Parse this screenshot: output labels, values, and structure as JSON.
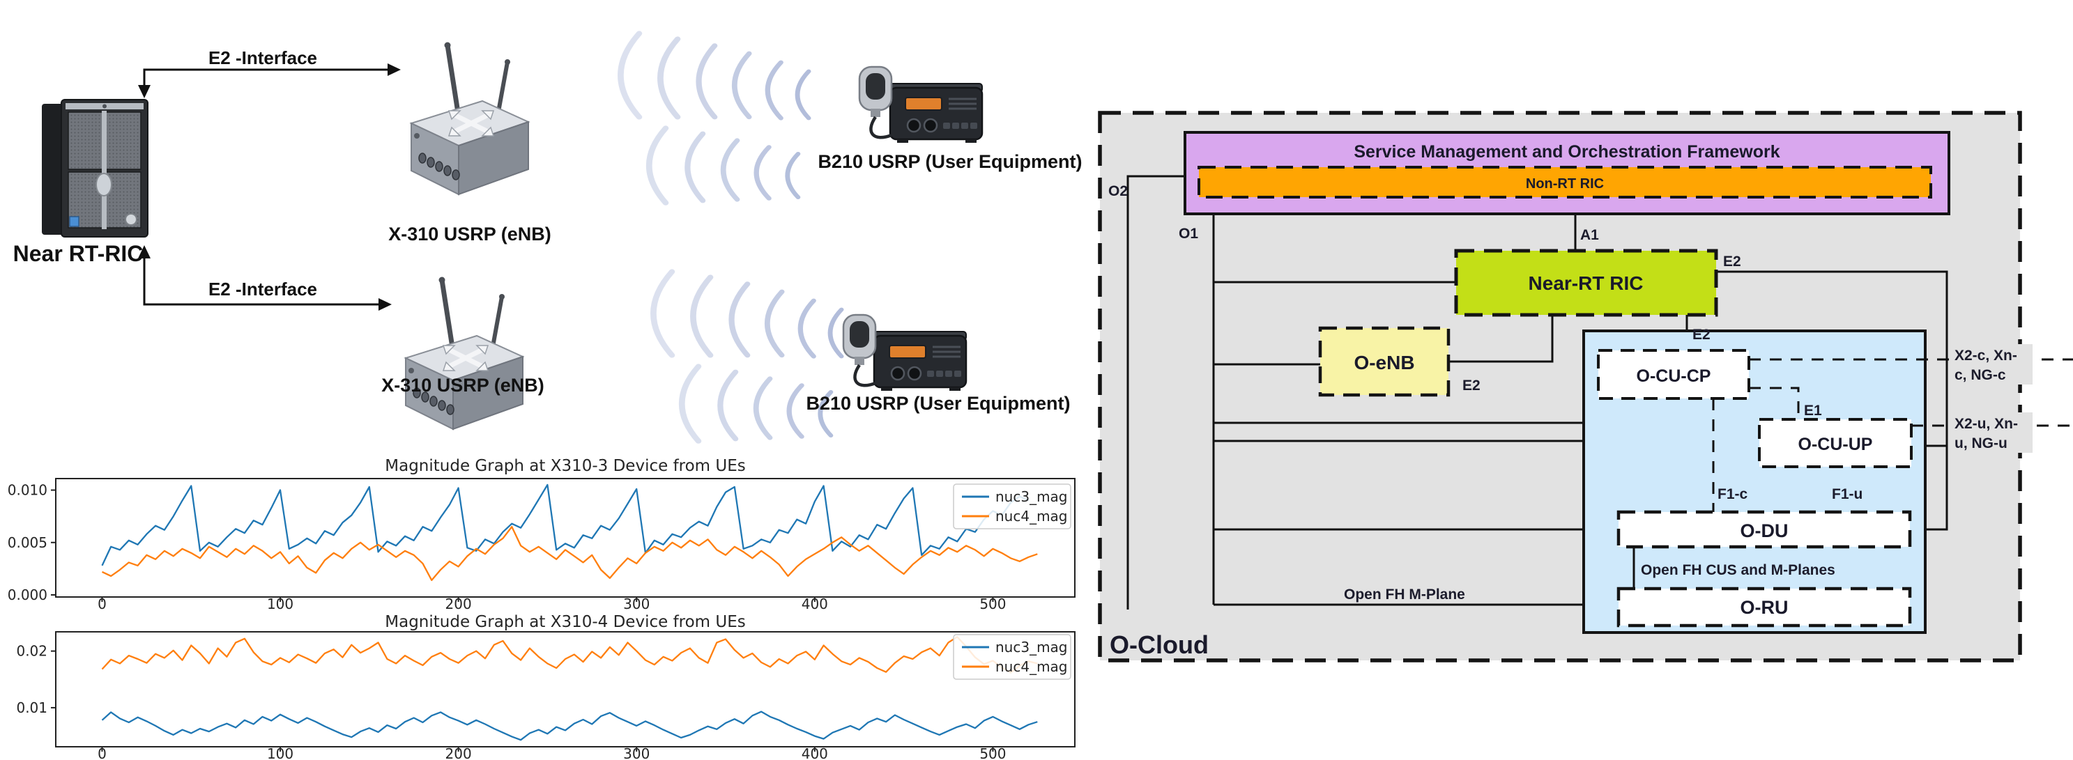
{
  "topology": {
    "near_rt_ric_label": "Near RT-RIC",
    "e2_interface_top_label": "E2 -Interface",
    "e2_interface_bottom_label": "E2 -Interface",
    "enb_top_label": "X-310 USRP (eNB)",
    "enb_bottom_label": "X-310 USRP (eNB)",
    "ue_top_label": "B210 USRP (User Equipment)",
    "ue_bottom_label": "B210 USRP (User Equipment)"
  },
  "oran": {
    "region_label": "O-Cloud",
    "smo_title": "Service Management and Orchestration Framework",
    "non_rt_ric": "Non-RT RIC",
    "near_rt_ric": "Near-RT RIC",
    "o_enb": "O-eNB",
    "o_cu_cp": "O-CU-CP",
    "o_cu_up": "O-CU-UP",
    "o_du": "O-DU",
    "o_ru": "O-RU",
    "interfaces": {
      "o2": "O2",
      "o1": "O1",
      "a1": "A1",
      "e2_top": "E2",
      "e2_mid": "E2",
      "e2_enb": "E2",
      "e1": "E1",
      "f1_c": "F1-c",
      "f1_u": "F1-u",
      "x2_c_line1": "X2-c, Xn-",
      "x2_c_line2": "c, NG-c",
      "x2_u_line1": "X2-u, Xn-",
      "x2_u_line2": "u, NG-u",
      "open_fh_m_plane": "Open FH M-Plane",
      "open_fh_cus": "Open FH CUS and M-Planes"
    },
    "colors": {
      "o_cloud_fill": "#e2e2e2",
      "smo_fill": "#d9a7ee",
      "non_rt_ric_fill": "#ffa502",
      "near_rt_ric_fill": "#c3df17",
      "o_enb_fill": "#f8f3a6",
      "components_region_fill": "#cfe9fb",
      "component_box_fill": "#ffffff",
      "border": "#141414"
    }
  },
  "chart_data": [
    {
      "type": "line",
      "title": "Magnitude Graph at X310-3 Device from UEs",
      "xlabel": "",
      "ylabel": "",
      "x_start": 0,
      "x_step": 5,
      "xticks": [
        0,
        100,
        200,
        300,
        400,
        500
      ],
      "ytick_values": [
        0,
        0.005,
        0.01
      ],
      "ytick_labels": [
        "0.000",
        "0.005",
        "0.010"
      ],
      "xlim": [
        -26,
        546
      ],
      "ylim": [
        -0.0002,
        0.0111
      ],
      "grid": false,
      "legend_position": "upper right",
      "series": [
        {
          "name": "nuc3_mag",
          "color": "#1f77b4",
          "values": [
            0.0028,
            0.0046,
            0.0043,
            0.0052,
            0.0048,
            0.0058,
            0.0066,
            0.0062,
            0.0075,
            0.009,
            0.0104,
            0.0042,
            0.005,
            0.0046,
            0.0055,
            0.0063,
            0.0059,
            0.0071,
            0.0067,
            0.0083,
            0.01,
            0.0044,
            0.0048,
            0.0054,
            0.0049,
            0.0061,
            0.0057,
            0.0069,
            0.0076,
            0.0088,
            0.0103,
            0.0041,
            0.0051,
            0.0047,
            0.0056,
            0.0052,
            0.0065,
            0.0061,
            0.0074,
            0.0086,
            0.0102,
            0.0045,
            0.0042,
            0.0053,
            0.0049,
            0.006,
            0.0068,
            0.0064,
            0.0077,
            0.0091,
            0.0105,
            0.0043,
            0.0049,
            0.0045,
            0.0057,
            0.0054,
            0.0066,
            0.0062,
            0.0073,
            0.0087,
            0.0101,
            0.004,
            0.0052,
            0.0048,
            0.0058,
            0.0055,
            0.0064,
            0.007,
            0.0066,
            0.0084,
            0.0098,
            0.0103,
            0.0044,
            0.0047,
            0.0053,
            0.005,
            0.0062,
            0.0059,
            0.0072,
            0.0068,
            0.0089,
            0.0104,
            0.0042,
            0.0051,
            0.0046,
            0.0057,
            0.0053,
            0.0067,
            0.0063,
            0.0078,
            0.0092,
            0.0102,
            0.0038,
            0.0047,
            0.0044,
            0.0055,
            0.0051,
            0.0063,
            0.006,
            0.0072,
            0.008,
            0.0076,
            0.0088,
            0.0094,
            0.009
          ]
        },
        {
          "name": "nuc4_mag",
          "color": "#ff7f0e",
          "values": [
            0.0022,
            0.0018,
            0.0024,
            0.0031,
            0.0028,
            0.0038,
            0.0034,
            0.0042,
            0.0037,
            0.0044,
            0.004,
            0.0035,
            0.0046,
            0.0041,
            0.0036,
            0.0044,
            0.0039,
            0.0047,
            0.0042,
            0.0035,
            0.0041,
            0.003,
            0.0037,
            0.0026,
            0.0021,
            0.0033,
            0.004,
            0.0035,
            0.0044,
            0.005,
            0.0043,
            0.0048,
            0.0042,
            0.0036,
            0.0042,
            0.0038,
            0.003,
            0.0014,
            0.0024,
            0.0032,
            0.0027,
            0.0037,
            0.0044,
            0.0039,
            0.0048,
            0.0054,
            0.0065,
            0.0047,
            0.0041,
            0.0046,
            0.004,
            0.0034,
            0.0043,
            0.0037,
            0.0031,
            0.0038,
            0.0024,
            0.0016,
            0.0026,
            0.0035,
            0.003,
            0.004,
            0.0046,
            0.0042,
            0.005,
            0.0045,
            0.0052,
            0.0047,
            0.0053,
            0.0043,
            0.0038,
            0.0046,
            0.0041,
            0.0035,
            0.0042,
            0.0036,
            0.0029,
            0.0018,
            0.0027,
            0.0034,
            0.0039,
            0.0044,
            0.005,
            0.0055,
            0.0048,
            0.0042,
            0.0047,
            0.004,
            0.0033,
            0.0026,
            0.002,
            0.0029,
            0.0036,
            0.0042,
            0.0038,
            0.0045,
            0.0041,
            0.0047,
            0.0043,
            0.0037,
            0.0044,
            0.004,
            0.0035,
            0.0032,
            0.0036,
            0.0039
          ]
        }
      ]
    },
    {
      "type": "line",
      "title": "Magnitude Graph at X310-4 Device from UEs",
      "xlabel": "",
      "ylabel": "",
      "x_start": 0,
      "x_step": 5,
      "xticks": [
        0,
        100,
        200,
        300,
        400,
        500
      ],
      "ytick_values": [
        0.01,
        0.02
      ],
      "ytick_labels": [
        "0.01",
        "0.02"
      ],
      "xlim": [
        -26,
        546
      ],
      "ylim": [
        0.0031,
        0.0234
      ],
      "grid": false,
      "legend_position": "upper right",
      "series": [
        {
          "name": "nuc3_mag",
          "color": "#1f77b4",
          "values": [
            0.0078,
            0.0092,
            0.0081,
            0.0074,
            0.0083,
            0.0076,
            0.0068,
            0.0059,
            0.0052,
            0.0061,
            0.0055,
            0.0063,
            0.0058,
            0.0066,
            0.0072,
            0.0065,
            0.0078,
            0.0071,
            0.0084,
            0.0077,
            0.0088,
            0.008,
            0.0073,
            0.0082,
            0.0075,
            0.0067,
            0.006,
            0.0053,
            0.0048,
            0.0058,
            0.0064,
            0.0057,
            0.0069,
            0.0063,
            0.0075,
            0.0082,
            0.0074,
            0.0086,
            0.0092,
            0.0083,
            0.0077,
            0.007,
            0.0078,
            0.0071,
            0.0063,
            0.0056,
            0.0049,
            0.0043,
            0.0055,
            0.0061,
            0.0054,
            0.0066,
            0.006,
            0.0072,
            0.0079,
            0.0071,
            0.0085,
            0.0091,
            0.0082,
            0.0075,
            0.0068,
            0.0076,
            0.0069,
            0.0061,
            0.0054,
            0.0047,
            0.0052,
            0.006,
            0.0067,
            0.0062,
            0.0073,
            0.008,
            0.0072,
            0.0086,
            0.0093,
            0.0084,
            0.0078,
            0.007,
            0.0063,
            0.0057,
            0.005,
            0.0045,
            0.0056,
            0.0062,
            0.0068,
            0.0061,
            0.0074,
            0.0081,
            0.0075,
            0.0087,
            0.0079,
            0.0072,
            0.0065,
            0.0058,
            0.0052,
            0.0059,
            0.0066,
            0.0071,
            0.0064,
            0.0077,
            0.0084,
            0.0076,
            0.0069,
            0.0062,
            0.007,
            0.0075
          ]
        },
        {
          "name": "nuc4_mag",
          "color": "#ff7f0e",
          "values": [
            0.0168,
            0.0185,
            0.0178,
            0.0192,
            0.0186,
            0.0179,
            0.0195,
            0.0188,
            0.0201,
            0.0184,
            0.021,
            0.0196,
            0.0178,
            0.0205,
            0.019,
            0.0215,
            0.0222,
            0.0198,
            0.0182,
            0.0176,
            0.0188,
            0.018,
            0.0194,
            0.0187,
            0.0179,
            0.0196,
            0.0203,
            0.0189,
            0.0211,
            0.0197,
            0.0205,
            0.0215,
            0.0186,
            0.0178,
            0.0192,
            0.0183,
            0.0175,
            0.019,
            0.0197,
            0.0186,
            0.0179,
            0.0192,
            0.02,
            0.0187,
            0.0211,
            0.0218,
            0.0196,
            0.0184,
            0.0205,
            0.019,
            0.0178,
            0.017,
            0.0186,
            0.0194,
            0.0181,
            0.0199,
            0.0188,
            0.0207,
            0.0193,
            0.0215,
            0.02,
            0.0184,
            0.0176,
            0.019,
            0.0183,
            0.0197,
            0.0205,
            0.0188,
            0.0179,
            0.0215,
            0.0221,
            0.0202,
            0.0188,
            0.0196,
            0.018,
            0.0172,
            0.0186,
            0.0178,
            0.0192,
            0.0199,
            0.0185,
            0.021,
            0.0195,
            0.0182,
            0.0176,
            0.0188,
            0.0181,
            0.017,
            0.0163,
            0.0179,
            0.0191,
            0.0186,
            0.0198,
            0.0205,
            0.0192,
            0.0215,
            0.0225,
            0.0208,
            0.0189,
            0.0177,
            0.0183,
            0.0171,
            0.0162,
            0.0174,
            0.0182,
            0.0178
          ]
        }
      ]
    }
  ]
}
